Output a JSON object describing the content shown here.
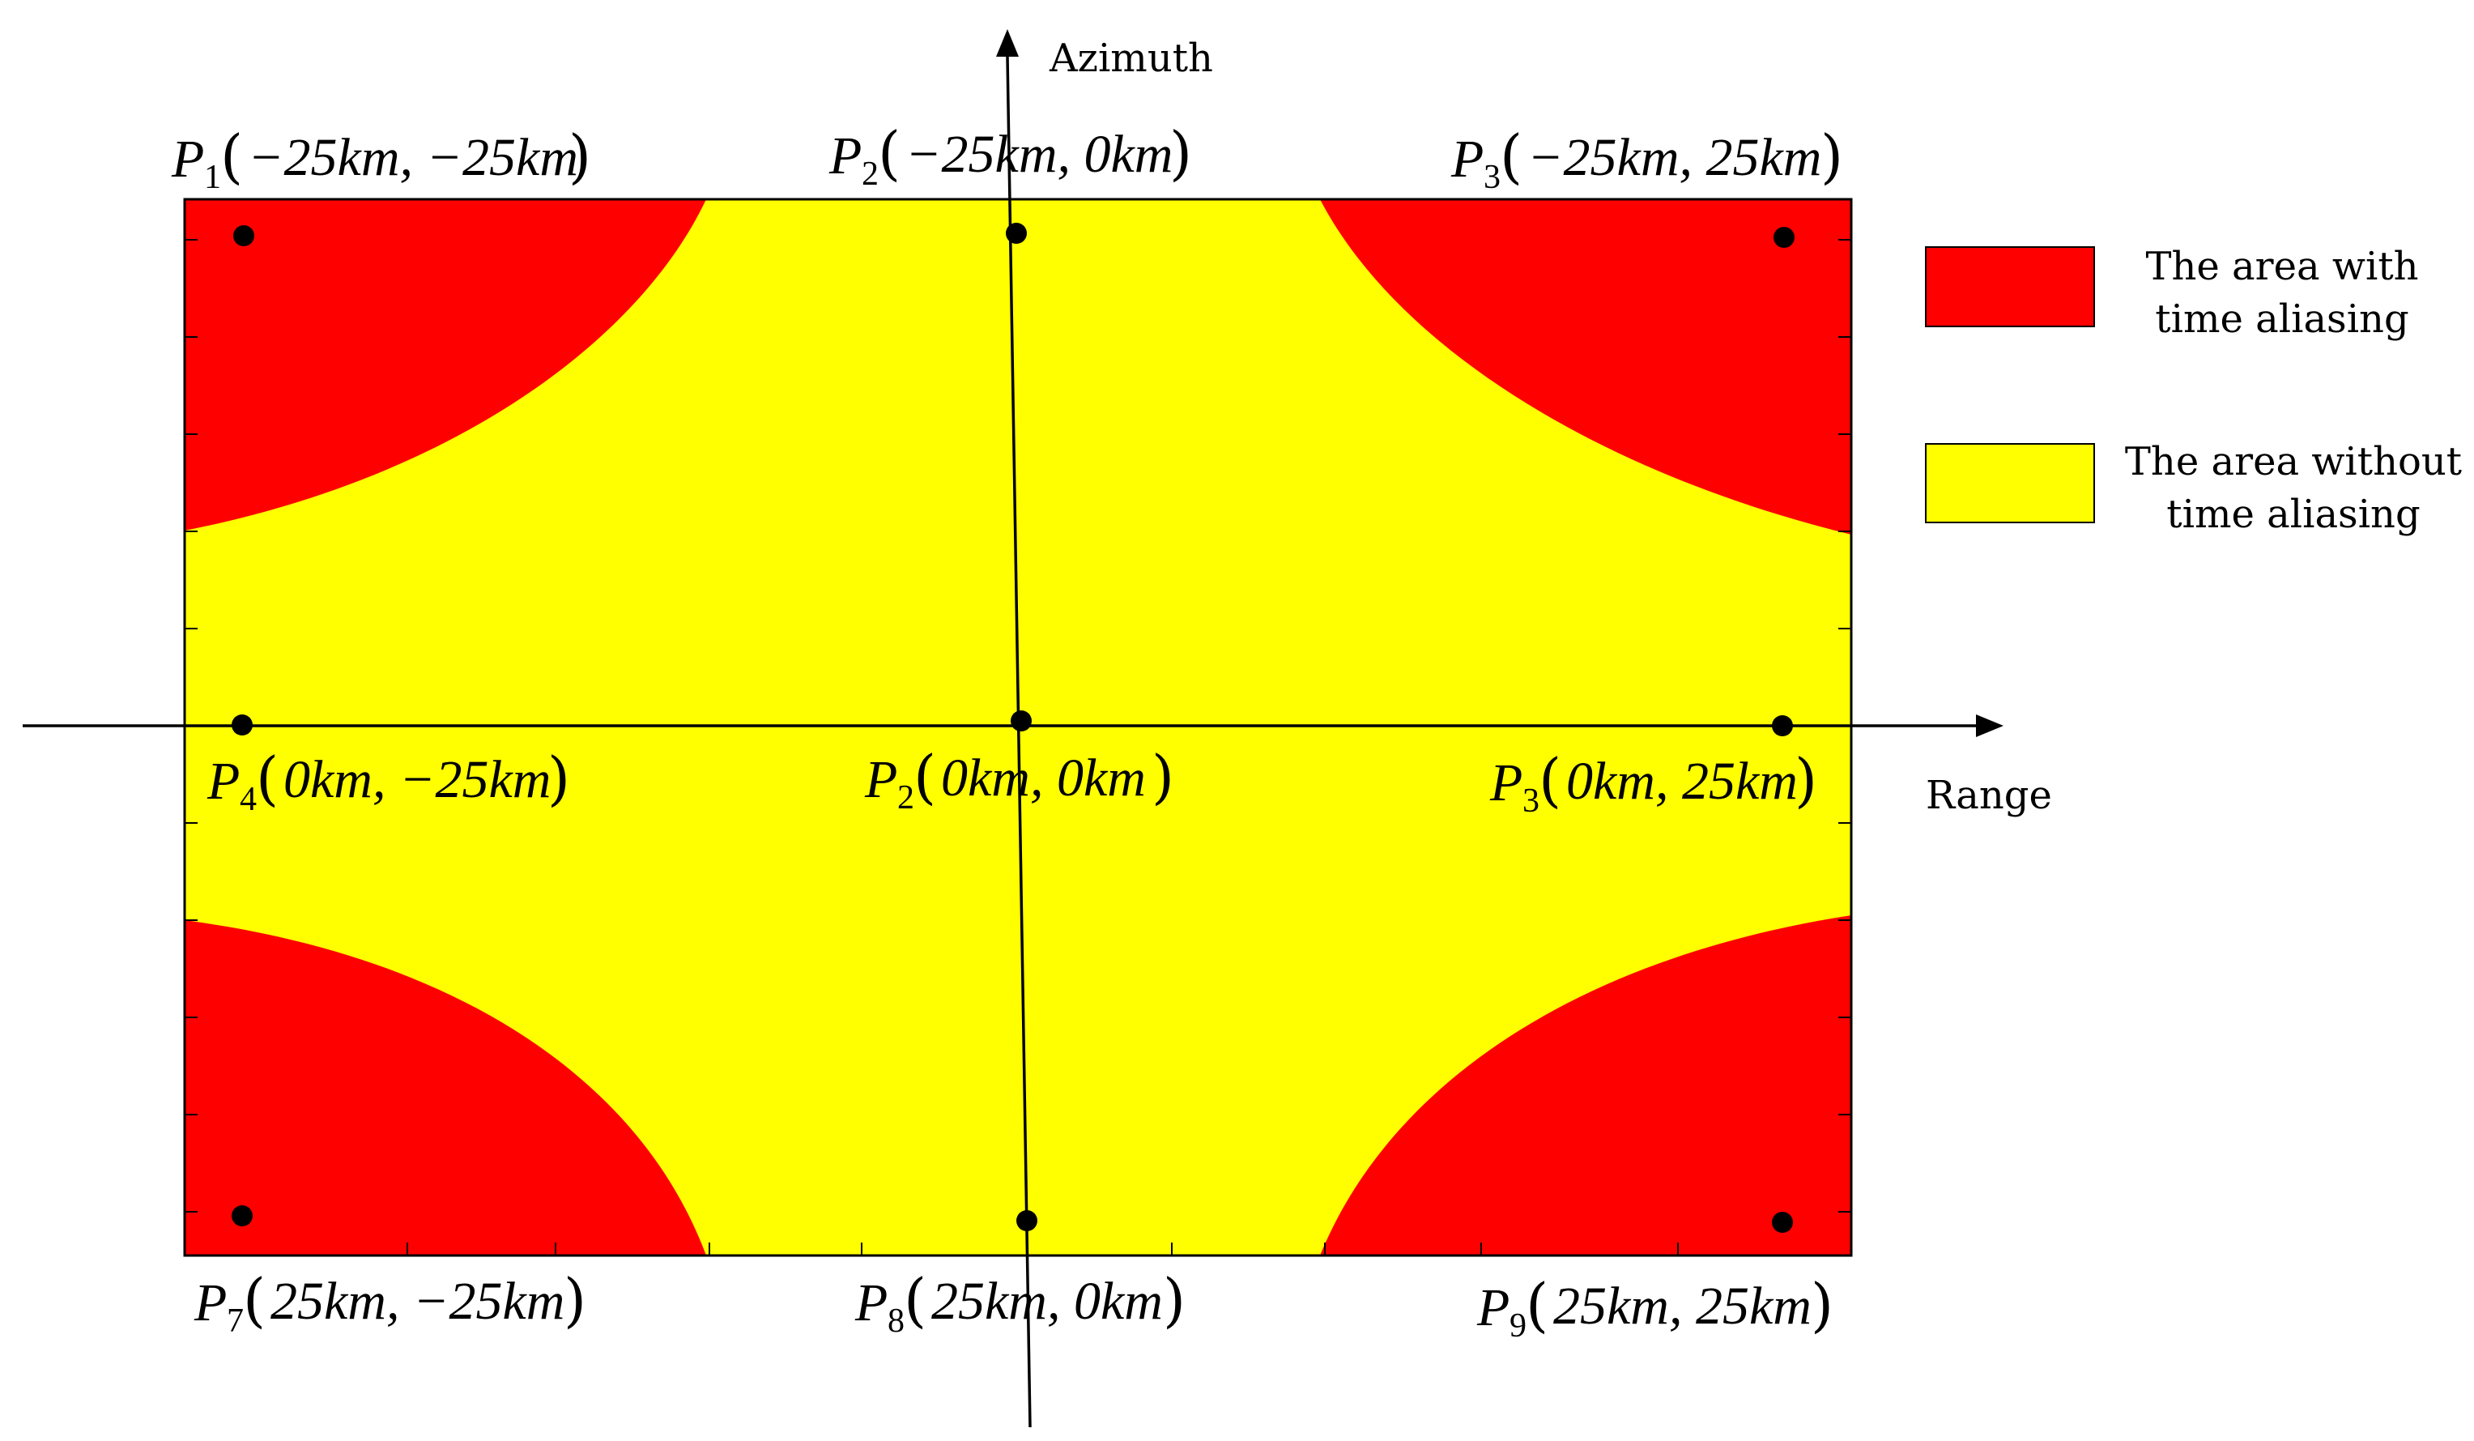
{
  "axes": {
    "vertical_label": "Azimuth",
    "horizontal_label": "Range"
  },
  "legend": [
    {
      "lines": [
        "The area with",
        "time aliasing"
      ],
      "color": "#ff0000"
    },
    {
      "lines": [
        "The area without",
        "time aliasing"
      ],
      "color": "#ffff00"
    }
  ],
  "points": [
    {
      "name": "P",
      "sub": "1",
      "coords": "−25km, −25km"
    },
    {
      "name": "P",
      "sub": "2",
      "coords": "−25km, 0km"
    },
    {
      "name": "P",
      "sub": "3",
      "coords": "−25km, 25km"
    },
    {
      "name": "P",
      "sub": "4",
      "coords": "0km, −25km"
    },
    {
      "name": "P",
      "sub": "2",
      "coords": "0km, 0km"
    },
    {
      "name": "P",
      "sub": "3",
      "coords": "0km, 25km"
    },
    {
      "name": "P",
      "sub": "7",
      "coords": "25km, −25km"
    },
    {
      "name": "P",
      "sub": "8",
      "coords": "25km, 0km"
    },
    {
      "name": "P",
      "sub": "9",
      "coords": "25km, 25km"
    }
  ],
  "colors": {
    "aliasing": "#ff0000",
    "no_aliasing": "#ffff00",
    "axis": "#000000"
  }
}
